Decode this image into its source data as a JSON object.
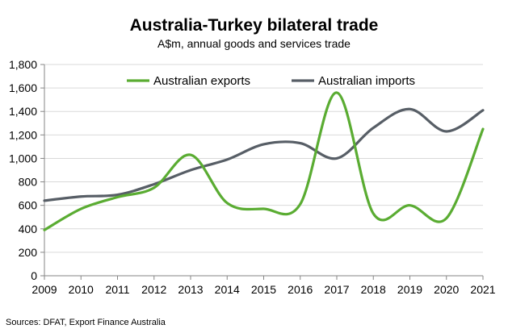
{
  "chart_data": {
    "type": "line",
    "title": "Australia-Turkey bilateral trade",
    "subtitle": "A$m, annual goods and services trade",
    "xlabel": "",
    "ylabel": "",
    "x": [
      2009,
      2010,
      2011,
      2012,
      2013,
      2014,
      2015,
      2016,
      2017,
      2018,
      2019,
      2020,
      2021
    ],
    "ylim": [
      0,
      1800
    ],
    "yticks": [
      0,
      200,
      400,
      600,
      800,
      1000,
      1200,
      1400,
      1600,
      1800
    ],
    "ytick_labels": [
      "0",
      "200",
      "400",
      "600",
      "800",
      "1,000",
      "1,200",
      "1,400",
      "1,600",
      "1,800"
    ],
    "grid": "horizontal",
    "legend_position": "top",
    "series": [
      {
        "name": "Australian exports",
        "color": "#5aac32",
        "values": [
          390,
          570,
          670,
          750,
          1030,
          620,
          570,
          610,
          1560,
          530,
          600,
          490,
          1250
        ]
      },
      {
        "name": "Australian imports",
        "color": "#575e66",
        "values": [
          640,
          675,
          690,
          780,
          900,
          990,
          1120,
          1130,
          1000,
          1260,
          1420,
          1230,
          1410
        ]
      }
    ]
  },
  "source": "Sources: DFAT, Export Finance Australia"
}
